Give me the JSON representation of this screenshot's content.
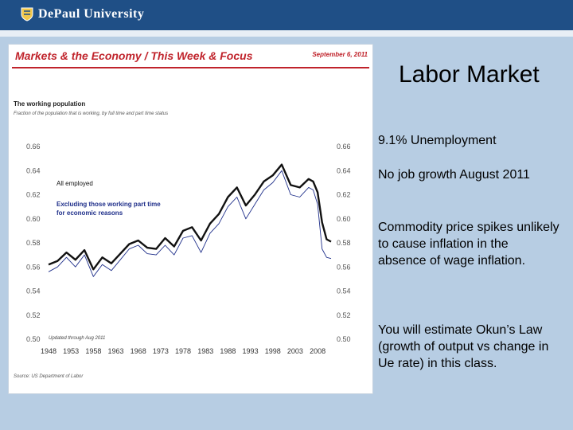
{
  "header": {
    "university": "DePaul University"
  },
  "panel": {
    "headline": "Markets & the Economy / This Week & Focus",
    "date": "September 6, 2011",
    "chart_title": "The working population",
    "chart_subtitle": "Fraction of the population that is working, by full time and part time status",
    "source": "Source: US Department of Labor"
  },
  "slide": {
    "title": "Labor Market",
    "bullets": [
      "9.1% Unemployment",
      "No job growth August 2011",
      "Commodity price spikes unlikely to cause inflation in the absence of wage inflation.",
      "You will estimate Okun’s Law (growth of output vs change in Ue rate) in this class."
    ]
  },
  "chart_data": {
    "type": "line",
    "title": "The working population",
    "subtitle": "Fraction of the population that is working, by full time and part time status",
    "annotation": "Updated through Aug 2011",
    "ylim": [
      0.5,
      0.66
    ],
    "yticks": [
      "0.66",
      "0.64",
      "0.62",
      "0.60",
      "0.58",
      "0.56",
      "0.54",
      "0.52",
      "0.50"
    ],
    "yticks_right": [
      "0.66",
      "0.64",
      "0.62",
      "0.60",
      "0.58",
      "0.56",
      "0.54",
      "0.52",
      "0.50"
    ],
    "xlim": [
      1948,
      2011
    ],
    "xticks": [
      "1948",
      "1953",
      "1958",
      "1963",
      "1968",
      "1973",
      "1978",
      "1983",
      "1988",
      "1993",
      "1998",
      "2003",
      "2008"
    ],
    "grid": false,
    "legend": "top-left",
    "colors": {
      "all": "#111111",
      "excl": "#1f2f8a"
    },
    "series": [
      {
        "name": "All employed",
        "x": [
          1948,
          1950,
          1952,
          1954,
          1956,
          1958,
          1960,
          1962,
          1964,
          1966,
          1968,
          1970,
          1972,
          1974,
          1976,
          1978,
          1980,
          1982,
          1984,
          1986,
          1988,
          1990,
          1992,
          1994,
          1996,
          1998,
          2000,
          2002,
          2004,
          2006,
          2007,
          2008,
          2009,
          2010,
          2011
        ],
        "values": [
          0.562,
          0.565,
          0.572,
          0.566,
          0.574,
          0.558,
          0.568,
          0.563,
          0.571,
          0.579,
          0.582,
          0.576,
          0.575,
          0.584,
          0.577,
          0.59,
          0.593,
          0.582,
          0.596,
          0.604,
          0.618,
          0.626,
          0.611,
          0.62,
          0.631,
          0.636,
          0.645,
          0.628,
          0.626,
          0.633,
          0.631,
          0.622,
          0.597,
          0.583,
          0.581
        ]
      },
      {
        "name": "Excluding those working part time for economic reasons",
        "x": [
          1948,
          1950,
          1952,
          1954,
          1956,
          1958,
          1960,
          1962,
          1964,
          1966,
          1968,
          1970,
          1972,
          1974,
          1976,
          1978,
          1980,
          1982,
          1984,
          1986,
          1988,
          1990,
          1992,
          1994,
          1996,
          1998,
          2000,
          2002,
          2004,
          2006,
          2007,
          2008,
          2009,
          2010,
          2011
        ],
        "values": [
          0.556,
          0.56,
          0.568,
          0.56,
          0.57,
          0.552,
          0.562,
          0.557,
          0.566,
          0.575,
          0.578,
          0.571,
          0.57,
          0.578,
          0.57,
          0.584,
          0.586,
          0.572,
          0.588,
          0.596,
          0.61,
          0.618,
          0.6,
          0.612,
          0.624,
          0.63,
          0.64,
          0.62,
          0.618,
          0.626,
          0.624,
          0.612,
          0.575,
          0.568,
          0.567
        ]
      }
    ]
  }
}
